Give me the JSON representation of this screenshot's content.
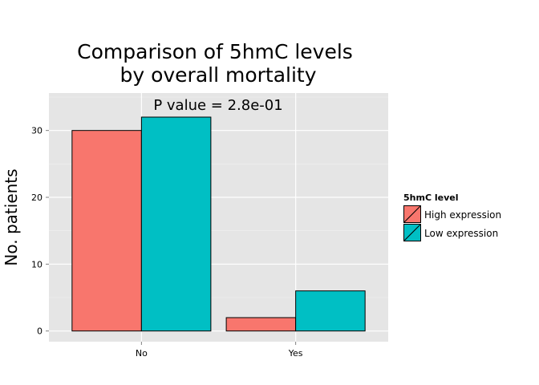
{
  "chart_data": {
    "type": "bar",
    "title_lines": [
      "Comparison of 5hmC levels",
      "by overall mortality"
    ],
    "annotation": "P value = 2.8e-01",
    "xlabel": "",
    "ylabel": "No. patients",
    "categories": [
      "No",
      "Yes"
    ],
    "series": [
      {
        "name": "High expression",
        "values": [
          30,
          2
        ],
        "color": "#F8766D"
      },
      {
        "name": "Low expression",
        "values": [
          32,
          6
        ],
        "color": "#00BFC4"
      }
    ],
    "yticks": [
      0,
      10,
      20,
      30
    ],
    "ylim": [
      -1.6,
      35.6
    ],
    "legend": {
      "title": "5hmC level",
      "position": "right"
    },
    "panel_background": "#E5E5E5",
    "grid": true
  }
}
